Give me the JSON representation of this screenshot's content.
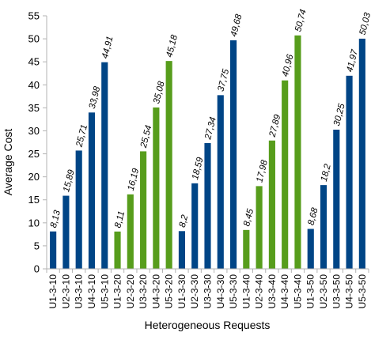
{
  "chart_data": {
    "type": "bar",
    "title": "",
    "xlabel": "Heterogeneous Requests",
    "ylabel": "Average Cost",
    "ylim": [
      0,
      55
    ],
    "yticks": [
      0,
      5,
      10,
      15,
      20,
      25,
      30,
      35,
      40,
      45,
      50,
      55
    ],
    "grid": false,
    "legend": "none",
    "decimal_separator": ",",
    "colors": {
      "blue": "#004586",
      "green": "#579d1c",
      "axis": "#b3b3b3"
    },
    "categories": [
      "U1-3-10",
      "U2-3-10",
      "U3-3-10",
      "U4-3-10",
      "U5-3-10",
      "U1-3-20",
      "U2-3-20",
      "U3-3-20",
      "U4-3-20",
      "U5-3-20",
      "U1-3-30",
      "U2-3-30",
      "U3-3-30",
      "U4-3-30",
      "U5-3-30",
      "U1-3-40",
      "U2-3-40",
      "U3-3-40",
      "U4-3-40",
      "U5-3-40",
      "U1-3-50",
      "U2-3-50",
      "U3-3-50",
      "U4-3-50",
      "U5-3-50"
    ],
    "values": [
      8.13,
      15.89,
      25.71,
      33.98,
      44.91,
      8.11,
      16.19,
      25.54,
      35.08,
      45.18,
      8.2,
      18.59,
      27.34,
      37.75,
      49.68,
      8.45,
      17.98,
      27.89,
      40.96,
      50.74,
      8.68,
      18.2,
      30.25,
      41.97,
      50.03
    ],
    "bar_colors": [
      "blue",
      "blue",
      "blue",
      "blue",
      "blue",
      "green",
      "green",
      "green",
      "green",
      "green",
      "blue",
      "blue",
      "blue",
      "blue",
      "blue",
      "green",
      "green",
      "green",
      "green",
      "green",
      "blue",
      "blue",
      "blue",
      "blue",
      "blue"
    ]
  }
}
